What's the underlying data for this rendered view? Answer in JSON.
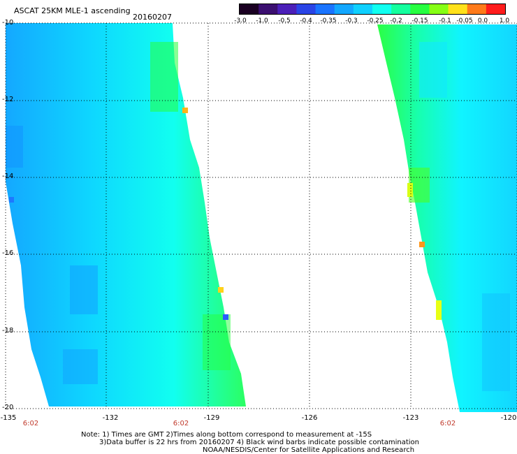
{
  "title": "ASCAT 25KM MLE-1 ascending",
  "date": "20160207",
  "colorbar": {
    "labels": [
      "-3.0",
      "-1.0",
      "-0.5",
      "-0.4",
      "-0.35",
      "-0.3",
      "-0.25",
      "-0.2",
      "-0.15",
      "-0.1",
      "-0.05",
      "0.0",
      "1.0"
    ],
    "colors": [
      "#1a0022",
      "#3b0f70",
      "#4b1fb8",
      "#2a44e6",
      "#1a74ff",
      "#12a7ff",
      "#0fd0ff",
      "#11fff0",
      "#14ff9e",
      "#26ff40",
      "#86ff14",
      "#ffe11a",
      "#ff7a1a",
      "#ff1c1c"
    ]
  },
  "lat_labels": [
    "-10",
    "-12",
    "-14",
    "-16",
    "-18",
    "-20"
  ],
  "lon_labels": [
    "-135",
    "-132",
    "-129",
    "-126",
    "-123",
    "-120"
  ],
  "time_labels": [
    "6:02",
    "6:02",
    "6:02"
  ],
  "notes": [
    "Note: 1) Times are GMT 2)Times along bottom correspond to measurement at -15S",
    "3)Data buffer is 22 hrs from 20160207 4) Black wind barbs indicate possible contamination",
    "NOAA/NESDIS/Center for Satellite Applications and Research"
  ]
}
